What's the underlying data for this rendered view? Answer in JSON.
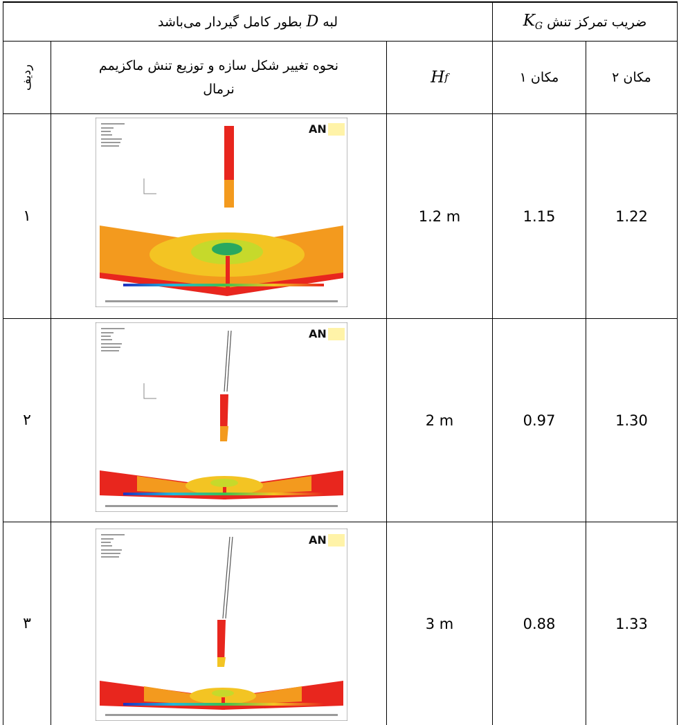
{
  "header": {
    "edge_condition_prefix": "لبه",
    "edge_condition_var": "D",
    "edge_condition_suffix": "بطور کامل گیردار می‌باشد",
    "kg_title_prefix": "ضریب تمرکز تنش",
    "kg_symbol": "K",
    "kg_subscript": "G"
  },
  "columns": {
    "row": "ردیف",
    "deformation": "نحوه تغییر شکل سازه و  توزیع تنش ماکزیمم نرمال",
    "hf_symbol": "H",
    "hf_subscript": "f",
    "loc1": "مکان ۱",
    "loc2": "مکان ۲"
  },
  "rows": [
    {
      "no": "۱",
      "hf": "1.2 m",
      "loc1": "1.15",
      "loc2": "1.22",
      "figure_logo": "AN"
    },
    {
      "no": "۲",
      "hf": "2  m",
      "loc1": "0.97",
      "loc2": "1.30",
      "figure_logo": "AN"
    },
    {
      "no": "۳",
      "hf": "3  m",
      "loc1": "0.88",
      "loc2": "1.33",
      "figure_logo": "AN"
    }
  ],
  "colors": {
    "stress_max": "#e8261e",
    "stress_high": "#f39a1e",
    "stress_mid": "#f3c423",
    "stress_low": "#c6d92b",
    "stress_min": "#28a860",
    "logo_box": "#fff3a8"
  }
}
